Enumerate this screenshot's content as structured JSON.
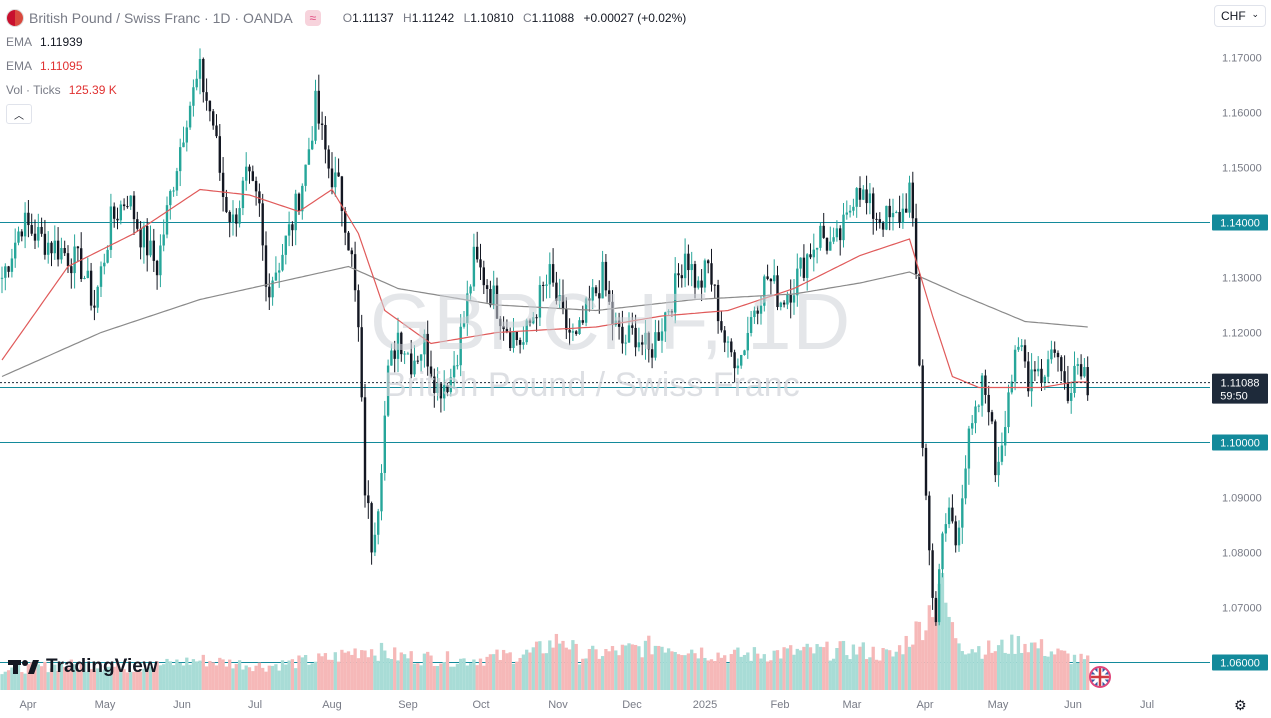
{
  "header": {
    "title": "British Pound / Swiss Franc · 1D · OANDA",
    "ohlc": {
      "o_label": "O",
      "o": "1.11137",
      "h_label": "H",
      "h": "1.11242",
      "l_label": "L",
      "l": "1.10810",
      "c_label": "C",
      "c": "1.11088",
      "change": "+0.00027 (+0.02%)"
    },
    "currency_button": "CHF"
  },
  "indicators": [
    {
      "name": "EMA",
      "value": "1.11939",
      "color": "#131722"
    },
    {
      "name": "EMA",
      "value": "1.11095",
      "color": "#e03131"
    },
    {
      "name": "Vol · Ticks",
      "value": "125.39 K",
      "color": "#e03131"
    }
  ],
  "watermark": {
    "symbol": "GBPCHF, 1D",
    "name": "British Pound / Swiss Franc"
  },
  "branding": "TradingView",
  "colors": {
    "up": "#26a69a",
    "down": "#131722",
    "ema_fast": "#e05a5a",
    "ema_slow": "#8a8a8a",
    "level_line": "#138a9b",
    "last_price": "#1e2a3a",
    "volume_up": "#a8dcd6",
    "volume_down": "#f6b8b8"
  },
  "chart_data": {
    "type": "candlestick",
    "symbol": "GBPCHF",
    "timeframe": "1D",
    "x_ticks": [
      "Apr",
      "May",
      "Jun",
      "Jul",
      "Aug",
      "Sep",
      "Oct",
      "Nov",
      "Dec",
      "2025",
      "Feb",
      "Mar",
      "Apr",
      "May",
      "Jun",
      "Jul"
    ],
    "y_ticks": [
      "1.17000",
      "1.16000",
      "1.15000",
      "1.13000",
      "1.12000",
      "1.09000",
      "1.08000",
      "1.07000"
    ],
    "ylim": [
      1.055,
      1.175
    ],
    "horizontal_levels": [
      {
        "price": 1.14,
        "label": "1.14000"
      },
      {
        "price": 1.11,
        "label": "1.11000"
      },
      {
        "price": 1.1,
        "label": "1.10000"
      },
      {
        "price": 1.06,
        "label": "1.06000"
      }
    ],
    "last_price": {
      "value": 1.11088,
      "label": "1.11088",
      "countdown": "59:50"
    },
    "close_path": [
      [
        0,
        1.13
      ],
      [
        6,
        1.14
      ],
      [
        12,
        1.137
      ],
      [
        18,
        1.135
      ],
      [
        24,
        1.132
      ],
      [
        28,
        1.125
      ],
      [
        33,
        1.14
      ],
      [
        38,
        1.145
      ],
      [
        42,
        1.138
      ],
      [
        47,
        1.132
      ],
      [
        52,
        1.148
      ],
      [
        56,
        1.16
      ],
      [
        60,
        1.167
      ],
      [
        64,
        1.158
      ],
      [
        67,
        1.145
      ],
      [
        70,
        1.14
      ],
      [
        74,
        1.148
      ],
      [
        78,
        1.142
      ],
      [
        80,
        1.128
      ],
      [
        84,
        1.133
      ],
      [
        88,
        1.14
      ],
      [
        92,
        1.15
      ],
      [
        95,
        1.161
      ],
      [
        99,
        1.15
      ],
      [
        102,
        1.146
      ],
      [
        104,
        1.141
      ],
      [
        106,
        1.133
      ],
      [
        108,
        1.12
      ],
      [
        110,
        1.092
      ],
      [
        112,
        1.082
      ],
      [
        114,
        1.09
      ],
      [
        117,
        1.112
      ],
      [
        120,
        1.12
      ],
      [
        124,
        1.115
      ],
      [
        128,
        1.118
      ],
      [
        132,
        1.11
      ],
      [
        136,
        1.112
      ],
      [
        140,
        1.122
      ],
      [
        143,
        1.133
      ],
      [
        146,
        1.13
      ],
      [
        150,
        1.125
      ],
      [
        154,
        1.12
      ],
      [
        158,
        1.118
      ],
      [
        162,
        1.125
      ],
      [
        166,
        1.13
      ],
      [
        170,
        1.122
      ],
      [
        174,
        1.118
      ],
      [
        178,
        1.125
      ],
      [
        182,
        1.13
      ],
      [
        185,
        1.122
      ],
      [
        188,
        1.118
      ],
      [
        192,
        1.12
      ],
      [
        196,
        1.116
      ],
      [
        200,
        1.122
      ],
      [
        204,
        1.128
      ],
      [
        207,
        1.135
      ],
      [
        211,
        1.128
      ],
      [
        214,
        1.132
      ],
      [
        217,
        1.124
      ],
      [
        220,
        1.116
      ],
      [
        224,
        1.116
      ],
      [
        228,
        1.125
      ],
      [
        232,
        1.13
      ],
      [
        236,
        1.126
      ],
      [
        240,
        1.129
      ],
      [
        244,
        1.134
      ],
      [
        248,
        1.138
      ],
      [
        252,
        1.135
      ],
      [
        256,
        1.14
      ],
      [
        259,
        1.148
      ],
      [
        262,
        1.143
      ],
      [
        266,
        1.141
      ],
      [
        270,
        1.14
      ],
      [
        273,
        1.142
      ],
      [
        275,
        1.146
      ],
      [
        277,
        1.13
      ],
      [
        279,
        1.1
      ],
      [
        281,
        1.08
      ],
      [
        283,
        1.068
      ],
      [
        285,
        1.082
      ],
      [
        287,
        1.088
      ],
      [
        289,
        1.082
      ],
      [
        291,
        1.092
      ],
      [
        293,
        1.1
      ],
      [
        295,
        1.104
      ],
      [
        297,
        1.11
      ],
      [
        299,
        1.108
      ],
      [
        301,
        1.095
      ],
      [
        303,
        1.101
      ],
      [
        305,
        1.11
      ],
      [
        307,
        1.114
      ],
      [
        309,
        1.117
      ],
      [
        311,
        1.112
      ],
      [
        313,
        1.115
      ],
      [
        315,
        1.112
      ],
      [
        317,
        1.115
      ],
      [
        319,
        1.118
      ],
      [
        321,
        1.112
      ],
      [
        323,
        1.11
      ],
      [
        325,
        1.114
      ],
      [
        327,
        1.115
      ],
      [
        329,
        1.111
      ]
    ],
    "ema_fast": [
      [
        0,
        1.115
      ],
      [
        20,
        1.132
      ],
      [
        40,
        1.138
      ],
      [
        60,
        1.146
      ],
      [
        75,
        1.145
      ],
      [
        90,
        1.142
      ],
      [
        100,
        1.146
      ],
      [
        108,
        1.138
      ],
      [
        116,
        1.124
      ],
      [
        130,
        1.118
      ],
      [
        150,
        1.12
      ],
      [
        180,
        1.121
      ],
      [
        200,
        1.123
      ],
      [
        220,
        1.124
      ],
      [
        240,
        1.128
      ],
      [
        260,
        1.134
      ],
      [
        275,
        1.137
      ],
      [
        282,
        1.123
      ],
      [
        288,
        1.112
      ],
      [
        296,
        1.11
      ],
      [
        305,
        1.11
      ],
      [
        315,
        1.11
      ],
      [
        325,
        1.111
      ],
      [
        329,
        1.111
      ]
    ],
    "ema_slow": [
      [
        0,
        1.112
      ],
      [
        30,
        1.12
      ],
      [
        60,
        1.126
      ],
      [
        90,
        1.13
      ],
      [
        105,
        1.132
      ],
      [
        120,
        1.128
      ],
      [
        150,
        1.125
      ],
      [
        180,
        1.124
      ],
      [
        210,
        1.126
      ],
      [
        240,
        1.127
      ],
      [
        260,
        1.129
      ],
      [
        275,
        1.131
      ],
      [
        290,
        1.127
      ],
      [
        310,
        1.122
      ],
      [
        329,
        1.121
      ]
    ],
    "volume_path": [
      [
        0,
        20
      ],
      [
        20,
        25
      ],
      [
        40,
        22
      ],
      [
        60,
        30
      ],
      [
        80,
        24
      ],
      [
        100,
        32
      ],
      [
        110,
        42
      ],
      [
        120,
        34
      ],
      [
        140,
        30
      ],
      [
        160,
        36
      ],
      [
        170,
        52
      ],
      [
        175,
        34
      ],
      [
        190,
        40
      ],
      [
        200,
        46
      ],
      [
        220,
        34
      ],
      [
        240,
        38
      ],
      [
        260,
        40
      ],
      [
        270,
        34
      ],
      [
        280,
        70
      ],
      [
        284,
        110
      ],
      [
        288,
        60
      ],
      [
        292,
        44
      ],
      [
        300,
        40
      ],
      [
        310,
        48
      ],
      [
        320,
        36
      ],
      [
        329,
        28
      ]
    ]
  }
}
